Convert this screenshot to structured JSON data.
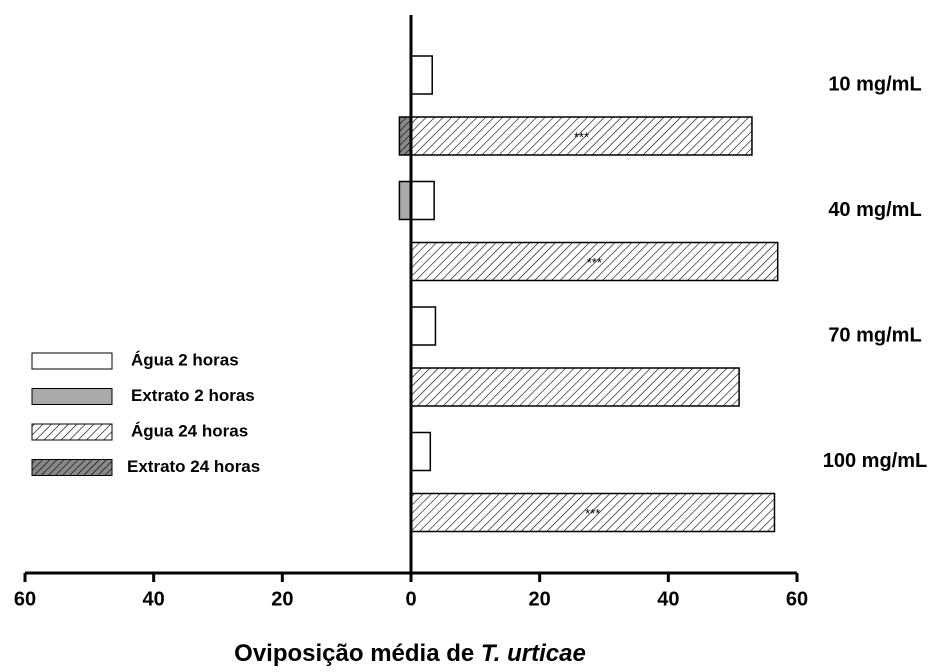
{
  "chart_data": {
    "type": "diverging-bar",
    "xlabel": [
      "Oviposição média de ",
      "T. urticae"
    ],
    "categories": [
      "10 mg/mL",
      "40 mg/mL",
      "70 mg/mL",
      "100 mg/mL"
    ],
    "series": [
      {
        "name": "Água 2 horas",
        "color": "#ffffff",
        "hatch": false,
        "row": "2h",
        "values": [
          3.3,
          3.6,
          3.8,
          3.0
        ]
      },
      {
        "name": "Extrato 2 horas",
        "color": "#aaaaaa",
        "hatch": false,
        "row": "2h",
        "values": [
          0,
          -1.8,
          0,
          0
        ]
      },
      {
        "name": "Água 24 horas",
        "color": "#ffffff",
        "hatch": true,
        "row": "24h",
        "values": [
          53,
          57,
          51,
          56.5
        ]
      },
      {
        "name": "Extrato 24 horas",
        "color": "#888888",
        "hatch": true,
        "row": "24h",
        "values": [
          -1.8,
          0,
          0,
          0
        ]
      }
    ],
    "annotations": [
      "***",
      "***",
      null,
      "***"
    ],
    "xlim": [
      -60,
      60
    ],
    "xticks": [
      {
        "value": -60,
        "label": "60"
      },
      {
        "value": -40,
        "label": "40"
      },
      {
        "value": -20,
        "label": "20"
      },
      0,
      20,
      40,
      60
    ],
    "legend": "left"
  }
}
